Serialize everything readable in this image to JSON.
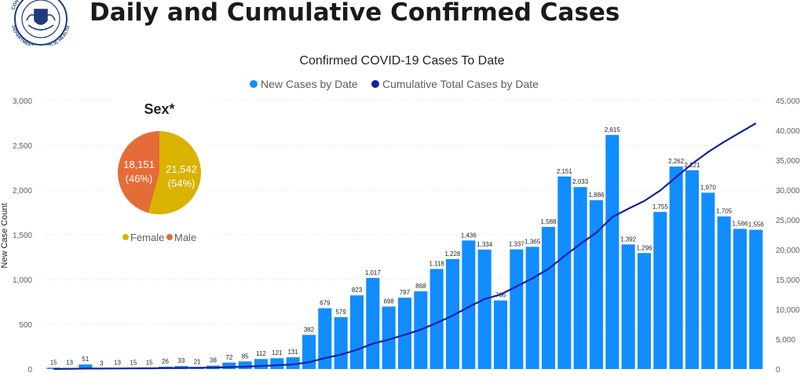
{
  "page": {
    "title": "Daily and Cumulative Confirmed Cases",
    "logo": {
      "icon": "department-of-public-health-seal",
      "text": "DEPARTMENT OF PUBLIC HEALTH",
      "top_text": "CON"
    }
  },
  "colors": {
    "bar": "#118DFF",
    "line": "#12239E",
    "female": "#D9B300",
    "male": "#E66C37",
    "grid": "#d8d8d8",
    "axis_text": "#605E5C"
  },
  "chart_data": [
    {
      "type": "bar+line",
      "title": "Confirmed COVID-19 Cases To Date",
      "ylabel": "New Case Count",
      "y2label": "",
      "legend": {
        "placement": "top-center",
        "entries": [
          "New Cases by Date",
          "Cumulative Total Cases by Date"
        ]
      },
      "grid": true,
      "ylim": [
        0,
        3000
      ],
      "y2lim": [
        0,
        45000
      ],
      "yticks": [
        "0",
        "500",
        "1,000",
        "1,500",
        "2,000",
        "2,500",
        "3,000"
      ],
      "y2ticks": [
        "0",
        "5,000",
        "10,000",
        "15,000",
        "20,000",
        "25,000",
        "30,000",
        "35,000",
        "40,000",
        "45,000"
      ],
      "series": [
        {
          "name": "New Cases by Date",
          "type": "bar",
          "values": [
            15,
            13,
            51,
            3,
            13,
            15,
            15,
            26,
            33,
            21,
            38,
            72,
            85,
            112,
            121,
            131,
            382,
            679,
            579,
            823,
            1017,
            698,
            797,
            868,
            1118,
            1228,
            1436,
            1334,
            766,
            1337,
            1365,
            1588,
            2151,
            2033,
            1886,
            2615,
            1392,
            1296,
            1755,
            2262,
            2221,
            1970,
            1705,
            1566,
            1556
          ],
          "labels": [
            "15",
            "13",
            "51",
            "3",
            "13",
            "15",
            "15",
            "26",
            "33",
            "21",
            "38",
            "72",
            "85",
            "112",
            "121",
            "131",
            "382",
            "679",
            "579",
            "823",
            "1,017",
            "698",
            "797",
            "868",
            "1,118",
            "1,228",
            "1,436",
            "1,334",
            "766",
            "1,337",
            "1,365",
            "1,588",
            "2,151",
            "2,033",
            "1,886",
            "2,615",
            "1,392",
            "1,296",
            "1,755",
            "2,262",
            "2,221",
            "1,970",
            "1,705",
            "1,566",
            "1,556"
          ]
        },
        {
          "name": "Cumulative Total Cases by Date",
          "type": "line",
          "values": [
            15,
            28,
            79,
            82,
            95,
            110,
            125,
            151,
            184,
            205,
            243,
            315,
            400,
            512,
            633,
            764,
            1146,
            1825,
            2404,
            3227,
            4244,
            4942,
            5739,
            6607,
            7725,
            8953,
            10389,
            11723,
            12489,
            13826,
            15191,
            16779,
            18930,
            20963,
            22849,
            25464,
            26856,
            28152,
            29907,
            32169,
            34390,
            36360,
            38065,
            39631,
            41187
          ]
        }
      ]
    },
    {
      "type": "pie",
      "title": "Sex*",
      "legend": {
        "placement": "bottom",
        "entries": [
          "Female",
          "Male"
        ]
      },
      "slices": [
        {
          "name": "Female",
          "value": 21542,
          "label": "21,542",
          "percent_label": "(54%)"
        },
        {
          "name": "Male",
          "value": 18151,
          "label": "18,151",
          "percent_label": "(46%)"
        }
      ]
    }
  ]
}
